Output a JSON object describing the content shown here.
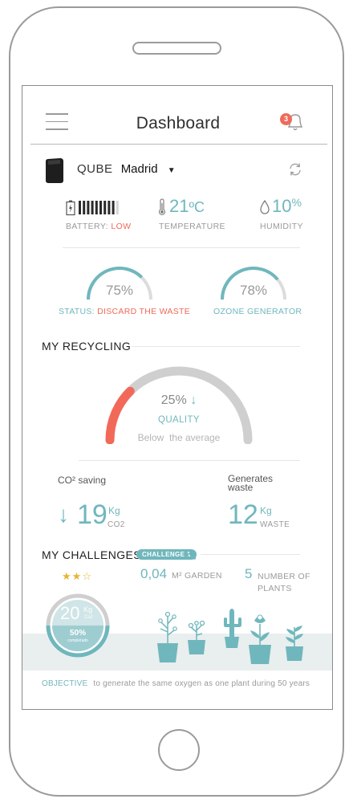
{
  "header": {
    "title": "Dashboard",
    "notification_count": "3"
  },
  "device": {
    "brand": "QUBE",
    "location": "Madrid"
  },
  "stats": {
    "battery_label": "BATTERY:",
    "battery_status": "LOW",
    "battery_level": 0.9,
    "temperature_value": "21",
    "temperature_unit": "ºC",
    "temperature_label": "TEMPERATURE",
    "humidity_value": "10",
    "humidity_unit": "%",
    "humidity_label": "HUMIDITY"
  },
  "gauges": {
    "status_value": "75%",
    "status_fraction": 0.75,
    "status_label": "STATUS:",
    "status_text": "DISCARD THE WASTE",
    "ozone_value": "78%",
    "ozone_fraction": 0.78,
    "ozone_label": "OZONE GENERATOR"
  },
  "recycling": {
    "section_title": "MY RECYCLING",
    "quality_value": "25%",
    "quality_arrow": "↓",
    "quality_fraction": 0.25,
    "quality_label": "QUALITY",
    "quality_note": "Below  the average",
    "co2_title": "CO² saving",
    "co2_value": "19",
    "co2_unit": "Kg",
    "co2_sub": "CO2",
    "waste_title_line1": "Generates",
    "waste_title_line2": "waste",
    "waste_value": "12",
    "waste_unit": "Kg",
    "waste_sub": "WASTE"
  },
  "challenges": {
    "section_title": "MY CHALLENGES",
    "badge": "CHALLENGE 1",
    "stars_filled": 2,
    "stars_total": 3,
    "garden_value": "0,04",
    "garden_unit": "M² GARDEN",
    "plants_value": "5",
    "plants_label_line1": "NUMBER OF",
    "plants_label_line2": "PLANTS",
    "circle_value": "20",
    "circle_unit": "Kg",
    "circle_sub": "Co2",
    "circle_percent": "50%",
    "circle_percent_label": "completado",
    "objective_label": "OBJECTIVE",
    "objective_text": "to generate the same oxygen as one plant during 50 years"
  }
}
